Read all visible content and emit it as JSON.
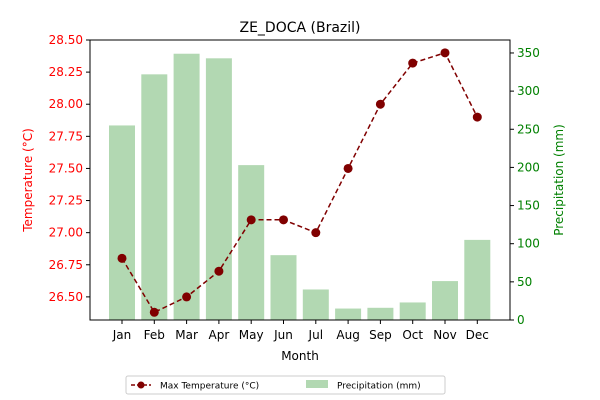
{
  "chart_data": {
    "type": "bar+line",
    "title": "ZE_DOCA (Brazil)",
    "xlabel": "Month",
    "ylabel_left": "Temperature (°C)",
    "ylabel_right": "Precipitation (mm)",
    "categories": [
      "Jan",
      "Feb",
      "Mar",
      "Apr",
      "May",
      "Jun",
      "Jul",
      "Aug",
      "Sep",
      "Oct",
      "Nov",
      "Dec"
    ],
    "series": [
      {
        "name": "Max Temperature (°C)",
        "type": "line",
        "axis": "left",
        "color": "#800000",
        "values": [
          26.8,
          26.38,
          26.5,
          26.7,
          27.1,
          27.1,
          27.0,
          27.5,
          28.0,
          28.32,
          28.4,
          27.9
        ]
      },
      {
        "name": "Precipitation (mm)",
        "type": "bar",
        "axis": "right",
        "color": "#b2d8b2",
        "values": [
          255,
          322,
          349,
          343,
          203,
          85,
          40,
          15,
          16,
          23,
          51,
          105
        ]
      }
    ],
    "ylim_left": [
      26.32,
      28.5
    ],
    "ylim_right": [
      0,
      367
    ],
    "yticks_left": [
      "26.50",
      "26.75",
      "27.00",
      "27.25",
      "27.50",
      "27.75",
      "28.00",
      "28.25",
      "28.50"
    ],
    "yticks_right": [
      "0",
      "50",
      "100",
      "150",
      "200",
      "250",
      "300",
      "350"
    ],
    "left_axis_color": "#ff0000",
    "right_axis_color": "#008000",
    "grid": false,
    "legend_position": "bottom-center"
  }
}
